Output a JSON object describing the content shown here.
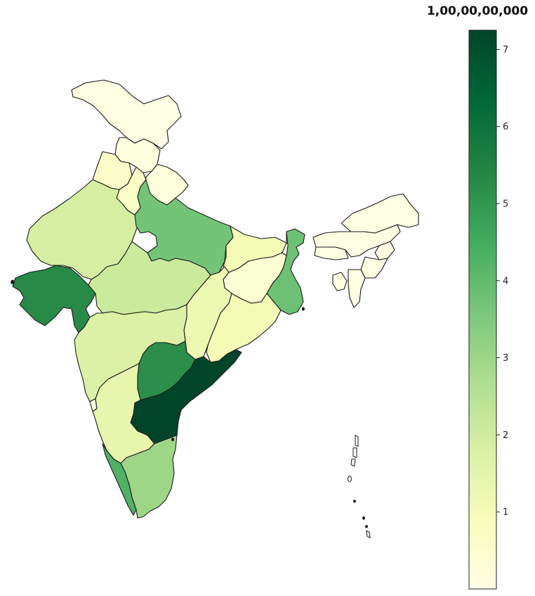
{
  "map": {
    "colorbar": {
      "title": "1,00,00,00,000",
      "min": 0,
      "max": 7.25,
      "ticks": [
        {
          "value": 1,
          "label": "1"
        },
        {
          "value": 2,
          "label": "2"
        },
        {
          "value": 3,
          "label": "3"
        },
        {
          "value": 4,
          "label": "4"
        },
        {
          "value": 5,
          "label": "5"
        },
        {
          "value": 6,
          "label": "6"
        },
        {
          "value": 7,
          "label": "7"
        }
      ],
      "colormap": [
        "#ffffe5",
        "#f7fcb9",
        "#d9f0a3",
        "#addd8e",
        "#78c679",
        "#41ab5d",
        "#238443",
        "#006837",
        "#004529"
      ]
    },
    "regions": [
      {
        "name": "Jammu and Kashmir",
        "value": 0.05
      },
      {
        "name": "Himachal Pradesh",
        "value": 0.15
      },
      {
        "name": "Punjab",
        "value": 0.6
      },
      {
        "name": "Haryana",
        "value": 0.6
      },
      {
        "name": "Uttarakhand",
        "value": 0.2
      },
      {
        "name": "Rajasthan",
        "value": 1.9
      },
      {
        "name": "Uttar Pradesh",
        "value": 3.7
      },
      {
        "name": "Bihar",
        "value": 1.0
      },
      {
        "name": "Gujarat",
        "value": 5.3
      },
      {
        "name": "Madhya Pradesh",
        "value": 2.1
      },
      {
        "name": "Jharkhand",
        "value": 0.4
      },
      {
        "name": "West Bengal",
        "value": 3.8
      },
      {
        "name": "Chhattisgarh",
        "value": 1.2
      },
      {
        "name": "Odisha",
        "value": 1.0
      },
      {
        "name": "Maharashtra",
        "value": 1.7
      },
      {
        "name": "Telangana",
        "value": 5.2
      },
      {
        "name": "Andhra Pradesh",
        "value": 7.25
      },
      {
        "name": "Karnataka",
        "value": 1.4
      },
      {
        "name": "Goa",
        "value": 0.2
      },
      {
        "name": "Kerala",
        "value": 4.3
      },
      {
        "name": "Tamil Nadu",
        "value": 3.0
      },
      {
        "name": "Sikkim",
        "value": 0.1
      },
      {
        "name": "Arunachal Pradesh",
        "value": 0.05
      },
      {
        "name": "Assam",
        "value": 0.05
      },
      {
        "name": "Meghalaya",
        "value": 0.05
      },
      {
        "name": "Nagaland",
        "value": 0.05
      },
      {
        "name": "Manipur",
        "value": 0.05
      },
      {
        "name": "Mizoram",
        "value": 0.05
      },
      {
        "name": "Tripura",
        "value": 0.05
      }
    ]
  }
}
